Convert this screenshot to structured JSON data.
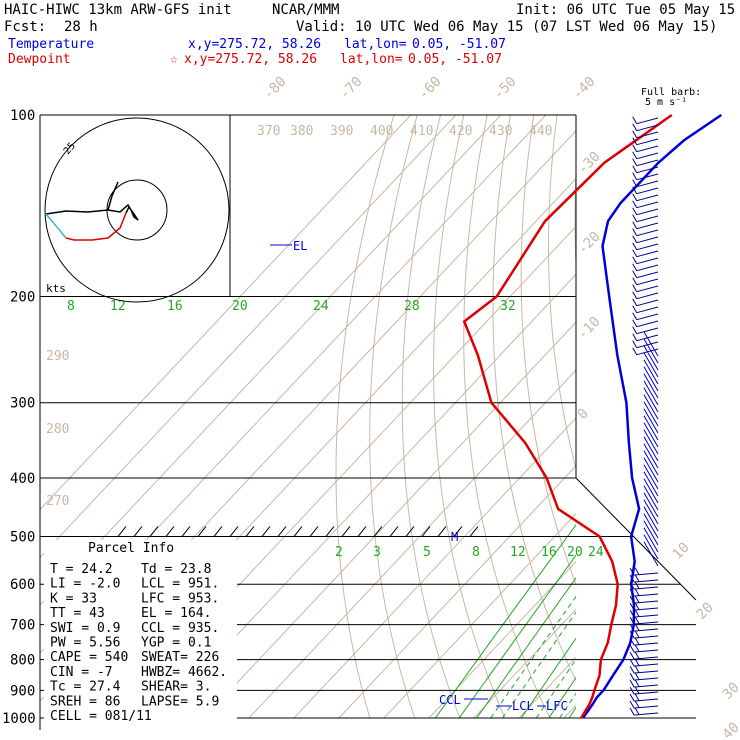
{
  "header": {
    "model": "HAIC-HIWC 13km ARW-GFS init",
    "org": "NCAR/MMM",
    "init": "Init: 06 UTC Tue 05 May 15",
    "fcst_label": "Fcst:",
    "fcst_value": "28 h",
    "valid": "Valid: 10 UTC Wed 06 May 15 (07 LST Wed 06 May 15)",
    "temp_label": "Temperature",
    "temp_xy": "x,y=275.72, 58.26",
    "temp_latlon_label": "lat,lon=",
    "temp_latlon": "0.05, -51.07",
    "dew_label": "Dewpoint",
    "dew_star": "☆",
    "dew_xy": "x,y=275.72, 58.26",
    "dew_latlon_label": "lat,lon=",
    "dew_latlon": "0.05, -51.07"
  },
  "colors": {
    "temperature": "#0000dd",
    "dewpoint": "#dd0000",
    "isotherm": "#c9b7a5",
    "mixing_ratio": "#22aa22",
    "grid": "#000000"
  },
  "barb_legend": {
    "line1": "Full barb:",
    "line2": "5 m s⁻¹"
  },
  "hodograph": {
    "ring_label": "25",
    "units_label": "kts"
  },
  "markers": {
    "el": "EL",
    "m": "M",
    "ccl": "CCL",
    "lcl": "LCL",
    "lfc": "LFC"
  },
  "parcel_info": {
    "title": "Parcel Info",
    "rows": [
      {
        "left": "T   =   24.2",
        "right": "Td =  23.8"
      },
      {
        "left": "LI  =   -2.0",
        "right": "LCL =  951."
      },
      {
        "left": "K   =     33",
        "right": "LFC =  953."
      },
      {
        "left": "TT  =     43",
        "right": "EL  =  164."
      },
      {
        "left": "SWI =    0.9",
        "right": "CCL =  935."
      },
      {
        "left": "PW  =   5.56",
        "right": "YGP =   0.1"
      },
      {
        "left": "CAPE =   540",
        "right": "SWEAT=  226"
      },
      {
        "left": "CIN  =    -7",
        "right": "HWBZ= 4662."
      },
      {
        "left": "Tc  =   27.4",
        "right": "SHEAR=   3."
      },
      {
        "left": "SREH =    86",
        "right": "LAPSE=   5.9"
      },
      {
        "left": "CELL = 081/11",
        "right": ""
      }
    ]
  },
  "chart_data": {
    "type": "line",
    "title": "",
    "pressure_levels": [
      100,
      200,
      300,
      400,
      500,
      600,
      700,
      800,
      900,
      1000
    ],
    "pressure_tick_labels": [
      "100",
      "200",
      "300",
      "400",
      "500",
      "600",
      "700",
      "800",
      "900",
      "1000"
    ],
    "isotherm_labels": [
      "-80",
      "-70",
      "-60",
      "-50",
      "-40",
      "-30",
      "-20",
      "-10",
      "0",
      "10",
      "20",
      "30",
      "40"
    ],
    "theta_labels_top": [
      "370",
      "380",
      "390",
      "400",
      "410",
      "420",
      "430",
      "440"
    ],
    "theta_labels_left": [
      "290",
      "280",
      "270"
    ],
    "mixing_ratio_labels_upper": [
      "8",
      "12",
      "16",
      "20",
      "24",
      "28",
      "32"
    ],
    "mixing_ratio_labels_lower": [
      "2",
      "3",
      "5",
      "8",
      "12",
      "16",
      "20",
      "24"
    ],
    "series": [
      {
        "name": "Temperature",
        "points": [
          [
            100,
            -71
          ],
          [
            110,
            -74
          ],
          [
            120,
            -75
          ],
          [
            140,
            -75
          ],
          [
            150,
            -74
          ],
          [
            165,
            -70
          ],
          [
            200,
            -58
          ],
          [
            250,
            -44
          ],
          [
            300,
            -32
          ],
          [
            350,
            -23
          ],
          [
            400,
            -15
          ],
          [
            450,
            -7
          ],
          [
            500,
            -3
          ],
          [
            550,
            3
          ],
          [
            600,
            7
          ],
          [
            650,
            12
          ],
          [
            700,
            16
          ],
          [
            750,
            19
          ],
          [
            800,
            21
          ],
          [
            850,
            22
          ],
          [
            900,
            23
          ],
          [
            925,
            23
          ],
          [
            950,
            23.5
          ],
          [
            1000,
            24.2
          ]
        ]
      },
      {
        "name": "Dewpoint",
        "points": [
          [
            100,
            -82
          ],
          [
            120,
            -87
          ],
          [
            150,
            -88
          ],
          [
            200,
            -83
          ],
          [
            220,
            -85
          ],
          [
            250,
            -75
          ],
          [
            300,
            -62
          ],
          [
            350,
            -46
          ],
          [
            400,
            -34
          ],
          [
            450,
            -25
          ],
          [
            500,
            -10
          ],
          [
            550,
            -2
          ],
          [
            600,
            4
          ],
          [
            650,
            8
          ],
          [
            700,
            11
          ],
          [
            750,
            14
          ],
          [
            800,
            16
          ],
          [
            850,
            19
          ],
          [
            900,
            21
          ],
          [
            925,
            22
          ],
          [
            950,
            22.8
          ],
          [
            1000,
            23.8
          ]
        ]
      }
    ]
  }
}
